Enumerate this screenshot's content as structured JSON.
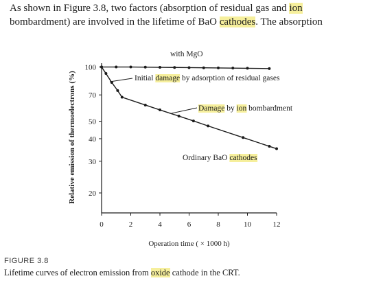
{
  "paragraph": {
    "lines": [
      [
        {
          "text": "As shown in Figure 3.8, two factors (absorption of residual gas and "
        },
        {
          "text": "ion",
          "highlight": "#f6ef9c"
        }
      ],
      [
        {
          "text": "bombardment) are involved in the lifetime of BaO "
        },
        {
          "text": "cathodes",
          "highlight": "#f6ef9c"
        },
        {
          "text": ". The absorption"
        }
      ]
    ]
  },
  "chart_data": {
    "type": "line",
    "y_label": "Relative emission of thermoelectrons (%)",
    "x_label": "Operation time ( × 1000 h)",
    "log_y": true,
    "xlim": [
      0,
      12
    ],
    "xticks": [
      0,
      2,
      4,
      6,
      8,
      10,
      12
    ],
    "ylim": [
      15.5,
      105
    ],
    "yticks": [
      20,
      30,
      40,
      50,
      70,
      100
    ],
    "series": [
      {
        "color": "#1a1a1a",
        "x": [
          0,
          1,
          2,
          3,
          4,
          5,
          6,
          7,
          8,
          9,
          10,
          11.5
        ],
        "values": [
          100,
          100,
          100,
          99.8,
          99.6,
          99.4,
          99.2,
          99,
          98.8,
          98.6,
          98.4,
          98
        ]
      },
      {
        "color": "#1a1a1a",
        "x": [
          0,
          0.3,
          0.7,
          1.1,
          1.4,
          3,
          4,
          5.3,
          6.3,
          7.3,
          9.7,
          11.5,
          12
        ],
        "values": [
          100,
          92,
          82,
          74,
          68,
          61.5,
          57.8,
          53.4,
          50.2,
          47.1,
          40.6,
          36.3,
          35.2
        ]
      }
    ],
    "annotations": [
      {
        "segments": [
          {
            "text": "with MgO"
          }
        ]
      },
      {
        "segments": [
          {
            "text": "Initial "
          },
          {
            "text": "damage",
            "highlight": "#f6ef9c"
          },
          {
            "text": " by adsorption of residual gases"
          }
        ]
      },
      {
        "segments": [
          {
            "text": "Damage",
            "highlight": "#f6ef9c"
          },
          {
            "text": " by "
          },
          {
            "text": "ion",
            "highlight": "#f6ef9c"
          },
          {
            "text": " bombardment"
          }
        ]
      },
      {
        "segments": [
          {
            "text": "Ordinary BaO "
          },
          {
            "text": "cathodes",
            "highlight": "#f6ef9c"
          }
        ]
      }
    ]
  },
  "caption": {
    "label": "FIGURE 3.8",
    "lines": [
      [
        {
          "text": "Lifetime curves of electron emission from "
        },
        {
          "text": "oxide",
          "highlight": "#f6ef9c"
        },
        {
          "text": " cathode in the CRT."
        }
      ]
    ]
  }
}
